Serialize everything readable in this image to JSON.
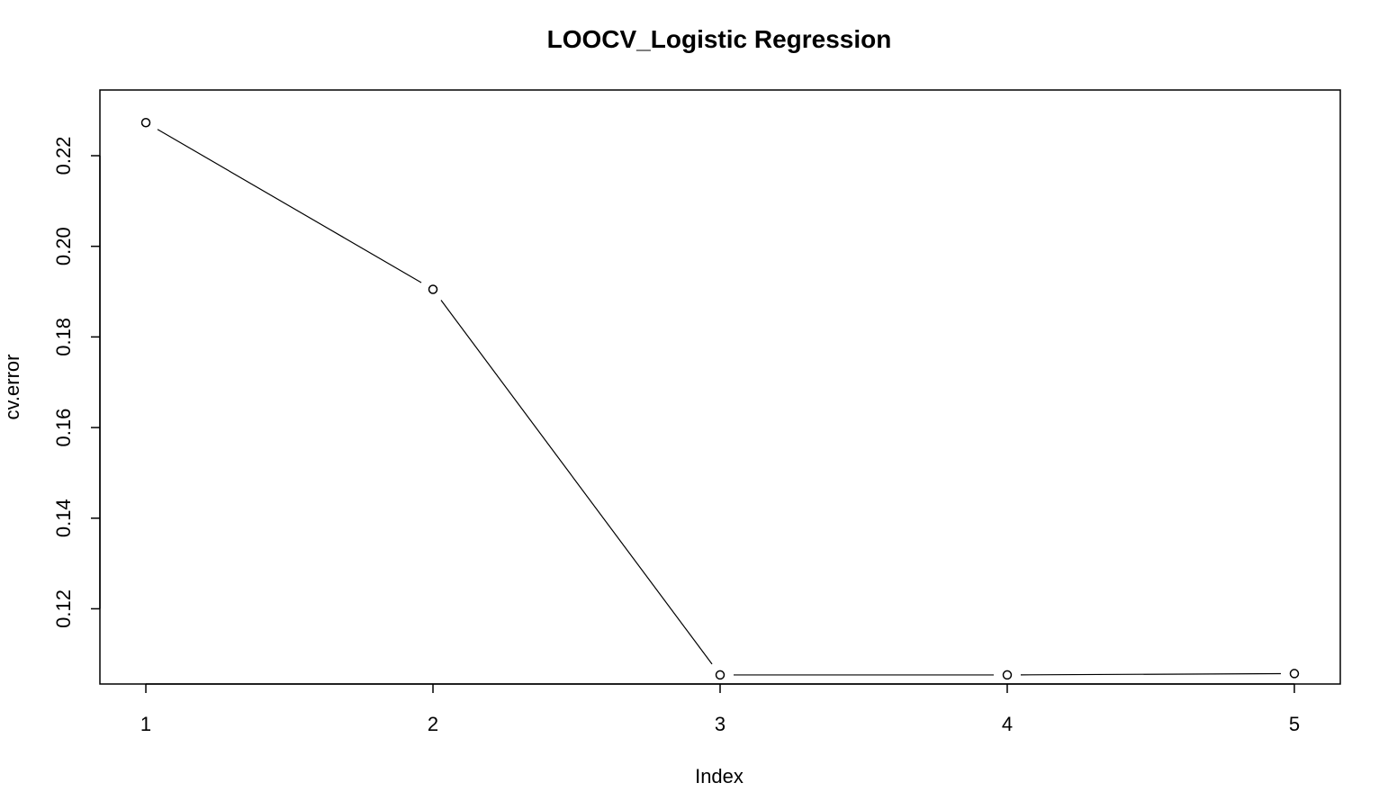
{
  "chart_data": {
    "type": "line",
    "title": "LOOCV_Logistic Regression",
    "xlabel": "Index",
    "ylabel": "cv.error",
    "x": [
      1,
      2,
      3,
      4,
      5
    ],
    "series": [
      {
        "values": [
          0.2273,
          0.1905,
          0.1054,
          0.1054,
          0.1057
        ]
      }
    ],
    "xticks": [
      "1",
      "2",
      "3",
      "4",
      "5"
    ],
    "yticks": [
      "0.12",
      "0.14",
      "0.16",
      "0.18",
      "0.20",
      "0.22"
    ],
    "xlim": [
      0.84,
      5.16
    ],
    "ylim": [
      0.1034,
      0.2345
    ],
    "markers": "open-circle",
    "line_color": "#000000",
    "grid": false,
    "legend": "none"
  }
}
